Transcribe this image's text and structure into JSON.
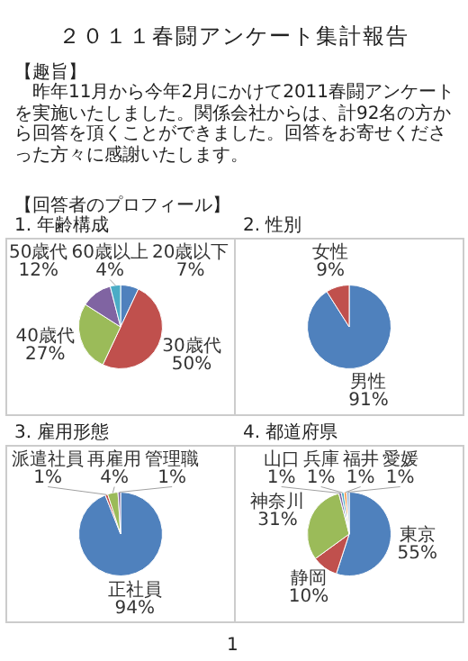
{
  "chart_data": [
    {
      "type": "other",
      "title": "２０１１春闘アンケート集計報告",
      "annotations": [
        "【趣旨】",
        "昨年11月から今年2月にかけて2011春闘アンケートを実施いたしました。関係会社からは、計92名の方から回答を頂くことができました。回答をお寄せくださった方々に感謝いたします。",
        "【回答者のプロフィール】",
        "1"
      ]
    },
    {
      "type": "pie",
      "title": "1. 年齢構成",
      "categories": [
        "20歳以下",
        "30歳代",
        "40歳代",
        "50歳代",
        "60歳以上"
      ],
      "values": [
        7,
        50,
        27,
        12,
        4
      ],
      "value_labels": [
        "7%",
        "50%",
        "27%",
        "12%",
        "4%"
      ],
      "colors": [
        "#4f81bd",
        "#c0504d",
        "#9bbb59",
        "#8064a2",
        "#4bacc6"
      ]
    },
    {
      "type": "pie",
      "title": "2. 性別",
      "categories": [
        "男性",
        "女性"
      ],
      "values": [
        91,
        9
      ],
      "value_labels": [
        "91%",
        "9%"
      ],
      "colors": [
        "#4f81bd",
        "#c0504d"
      ]
    },
    {
      "type": "pie",
      "title": "3. 雇用形態",
      "categories": [
        "正社員",
        "派遣社員",
        "再雇用",
        "管理職"
      ],
      "values": [
        94,
        1,
        4,
        1
      ],
      "value_labels": [
        "94%",
        "1%",
        "4%",
        "1%"
      ],
      "colors": [
        "#4f81bd",
        "#c0504d",
        "#9bbb59",
        "#8064a2"
      ]
    },
    {
      "type": "pie",
      "title": "4. 都道府県",
      "categories": [
        "東京",
        "静岡",
        "神奈川",
        "山口",
        "兵庫",
        "福井",
        "愛媛"
      ],
      "values": [
        55,
        10,
        31,
        1,
        1,
        1,
        1
      ],
      "value_labels": [
        "55%",
        "10%",
        "31%",
        "1%",
        "1%",
        "1%",
        "1%"
      ],
      "colors": [
        "#4f81bd",
        "#c0504d",
        "#9bbb59",
        "#8064a2",
        "#4bacc6",
        "#f79646",
        "#95b3d7"
      ]
    }
  ]
}
